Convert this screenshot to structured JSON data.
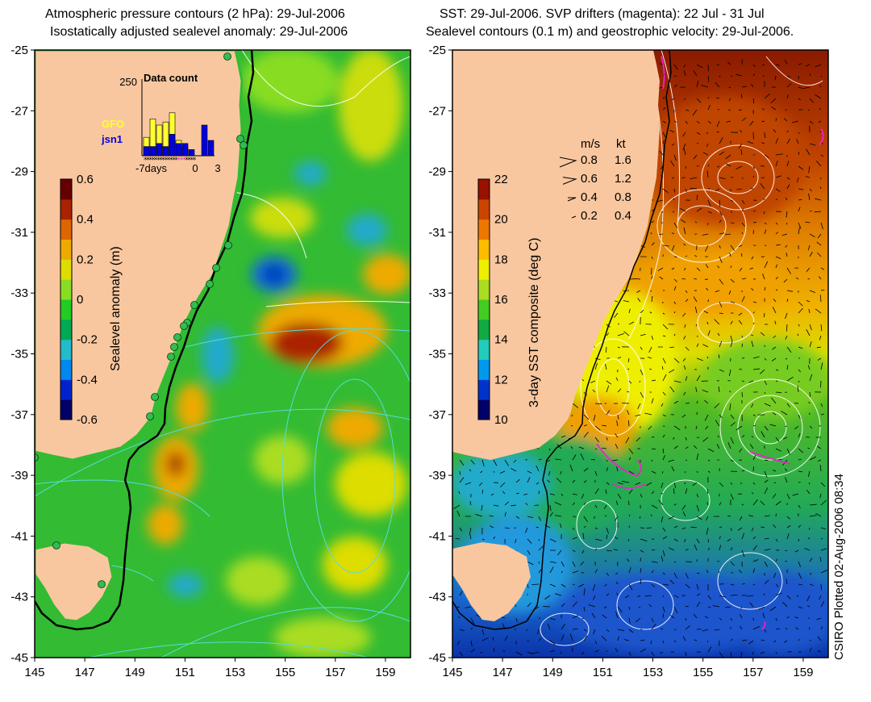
{
  "left_panel": {
    "title_line1": "Atmospheric pressure contours (2 hPa): 29-Jul-2006",
    "title_line2": "Isostatically adjusted sealevel anomaly: 29-Jul-2006",
    "colorbar": {
      "label": "Sealevel anomaly (m)",
      "ticks": [
        "0.6",
        "0.4",
        "0.2",
        "0",
        "-0.2",
        "-0.4",
        "-0.6"
      ],
      "colors": [
        "#000066",
        "#0022cc",
        "#0088ee",
        "#22bbcc",
        "#00aa55",
        "#22cc22",
        "#88dd22",
        "#dddd00",
        "#eeaa00",
        "#dd6600",
        "#aa2200",
        "#660000"
      ]
    },
    "inset": {
      "title": "Data count",
      "ymax_label": "250",
      "x_labels": [
        "-7days",
        "0",
        "3"
      ],
      "series": [
        {
          "name": "GFO",
          "color": "#ffff33"
        },
        {
          "name": "jsn1",
          "color": "#0000dd"
        }
      ],
      "yellow_values": [
        60,
        120,
        100,
        110,
        140,
        50,
        30
      ],
      "blue_values": [
        30,
        30,
        40,
        30,
        70,
        40,
        40,
        20,
        0,
        100,
        50
      ]
    }
  },
  "right_panel": {
    "title_line1": "SST: 29-Jul-2006. SVP drifters (magenta): 22 Jul - 31 Jul",
    "title_line2": "Sealevel contours (0.1 m) and geostrophic velocity: 29-Jul-2006.",
    "colorbar": {
      "label": "3-day SST composite (deg C)",
      "ticks": [
        "22",
        "20",
        "18",
        "16",
        "14",
        "12",
        "10"
      ],
      "colors": [
        "#000066",
        "#0033cc",
        "#0099ee",
        "#22ccbb",
        "#11aa44",
        "#44cc22",
        "#aadd22",
        "#eeee00",
        "#ffbb00",
        "#ee7700",
        "#cc4400",
        "#991100"
      ]
    },
    "velocity_legend": {
      "header_ms": "m/s",
      "header_kt": "kt",
      "rows": [
        {
          "ms": "0.8",
          "kt": "1.6"
        },
        {
          "ms": "0.6",
          "kt": "1.2"
        },
        {
          "ms": "0.4",
          "kt": "0.8"
        },
        {
          "ms": "0.2",
          "kt": "0.4"
        }
      ]
    }
  },
  "axes": {
    "lat_labels": [
      "-25",
      "-27",
      "-29",
      "-31",
      "-33",
      "-35",
      "-37",
      "-39",
      "-41",
      "-43",
      "-45"
    ],
    "lon_labels": [
      "145",
      "147",
      "149",
      "151",
      "153",
      "155",
      "157",
      "159"
    ]
  },
  "credit": "CSIRO Plotted 02-Aug-2006 08:34",
  "colors": {
    "land": "#f9c79f",
    "contour": "#ffffff",
    "pressure_contour": "#55dddd",
    "coast": "#000000"
  }
}
